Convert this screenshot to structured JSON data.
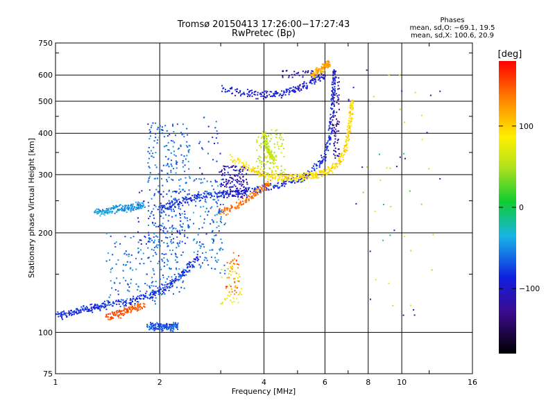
{
  "chart_data": {
    "type": "scatter",
    "title": "Tromsø 20150413 17:26:00−17:27:43",
    "subtitle": "RwPretec (Bp)",
    "xlabel": "Frequency [MHz]",
    "ylabel": "Stationary phase Virtual Height [km]",
    "x_scale": "log",
    "y_scale": "log",
    "xlim": [
      1,
      16
    ],
    "ylim": [
      75,
      750
    ],
    "x_ticks": [
      1,
      2,
      4,
      6,
      8,
      10,
      16
    ],
    "x_tick_labels": [
      "1",
      "2",
      "4",
      "6",
      "8",
      "10",
      "16"
    ],
    "y_ticks": [
      75,
      100,
      200,
      300,
      400,
      500,
      600,
      750
    ],
    "y_tick_labels": [
      "75",
      "100",
      "200",
      "300",
      "400",
      "500",
      "600",
      "750"
    ],
    "grid": true,
    "phase_stats": {
      "heading": "Phases",
      "o_line": "mean, sd,O: −69.1, 19.5",
      "x_line": "mean, sd,X: 100.6, 20.9"
    },
    "colorbar": {
      "label": "[deg]",
      "range": [
        -180,
        180
      ],
      "ticks": [
        100,
        0,
        -100
      ],
      "tick_labels": [
        "100",
        "0",
        "−100"
      ]
    },
    "traces": [
      {
        "mode": "O",
        "phase": -85,
        "points": [
          [
            1.0,
            112
          ],
          [
            1.1,
            114
          ],
          [
            1.2,
            117
          ],
          [
            1.3,
            119
          ],
          [
            1.4,
            121
          ],
          [
            1.6,
            124
          ],
          [
            1.8,
            128
          ],
          [
            2.0,
            133
          ],
          [
            2.2,
            142
          ],
          [
            2.4,
            155
          ],
          [
            2.6,
            172
          ]
        ]
      },
      {
        "mode": "O",
        "phase": -85,
        "points": [
          [
            2.0,
            235
          ],
          [
            2.2,
            245
          ],
          [
            2.4,
            252
          ],
          [
            2.6,
            258
          ],
          [
            3.0,
            262
          ],
          [
            3.5,
            268
          ],
          [
            4.0,
            272
          ],
          [
            4.5,
            280
          ],
          [
            5.0,
            290
          ],
          [
            5.5,
            305
          ],
          [
            6.0,
            340
          ],
          [
            6.2,
            390
          ],
          [
            6.3,
            460
          ],
          [
            6.35,
            540
          ],
          [
            6.4,
            620
          ]
        ]
      },
      {
        "mode": "X",
        "phase": 95,
        "points": [
          [
            3.2,
            340
          ],
          [
            3.6,
            315
          ],
          [
            4.0,
            300
          ],
          [
            4.4,
            295
          ],
          [
            4.8,
            294
          ],
          [
            5.2,
            296
          ],
          [
            5.6,
            300
          ],
          [
            6.0,
            305
          ],
          [
            6.4,
            315
          ],
          [
            6.8,
            345
          ],
          [
            7.0,
            390
          ],
          [
            7.1,
            440
          ],
          [
            7.2,
            500
          ]
        ]
      },
      {
        "mode": "X",
        "phase": 140,
        "points": [
          [
            3.0,
            230
          ],
          [
            3.3,
            240
          ],
          [
            3.6,
            255
          ],
          [
            3.9,
            270
          ],
          [
            4.2,
            285
          ]
        ]
      },
      {
        "mode": "O",
        "phase": -95,
        "points": [
          [
            3.0,
            545
          ],
          [
            3.5,
            528
          ],
          [
            4.0,
            522
          ],
          [
            4.5,
            528
          ],
          [
            5.0,
            545
          ],
          [
            5.5,
            570
          ],
          [
            6.0,
            600
          ]
        ]
      },
      {
        "mode": "X",
        "phase": 120,
        "points": [
          [
            5.5,
            600
          ],
          [
            5.8,
            620
          ],
          [
            6.0,
            640
          ],
          [
            6.2,
            650
          ]
        ]
      },
      {
        "mode": "X",
        "phase": 60,
        "points": [
          [
            4.0,
            400
          ],
          [
            4.1,
            360
          ],
          [
            4.2,
            340
          ],
          [
            4.3,
            330
          ]
        ]
      },
      {
        "mode": "X",
        "phase": 150,
        "points": [
          [
            1.4,
            111
          ],
          [
            1.5,
            113
          ],
          [
            1.6,
            116
          ],
          [
            1.7,
            119
          ],
          [
            1.8,
            121
          ]
        ]
      },
      {
        "mode": "O",
        "phase": -45,
        "points": [
          [
            1.3,
            231
          ],
          [
            1.4,
            233
          ],
          [
            1.5,
            236
          ],
          [
            1.6,
            238
          ],
          [
            1.7,
            240
          ],
          [
            1.8,
            242
          ]
        ]
      },
      {
        "mode": "O",
        "phase": -70,
        "points": [
          [
            1.85,
            104
          ],
          [
            1.95,
            104
          ],
          [
            2.05,
            104
          ],
          [
            2.15,
            104
          ],
          [
            2.25,
            104
          ]
        ]
      }
    ],
    "clusters": [
      {
        "phase": -60,
        "f_range": [
          1.85,
          2.45
        ],
        "h_range": [
          130,
          430
        ],
        "count": 380
      },
      {
        "phase": -55,
        "f_range": [
          2.5,
          3.1
        ],
        "h_range": [
          150,
          300
        ],
        "count": 120
      },
      {
        "phase": -110,
        "f_range": [
          3.0,
          3.6
        ],
        "h_range": [
          255,
          320
        ],
        "count": 160
      },
      {
        "phase": 55,
        "f_range": [
          3.8,
          4.6
        ],
        "h_range": [
          300,
          410
        ],
        "count": 110
      },
      {
        "phase": 145,
        "f_range": [
          3.1,
          3.4
        ],
        "h_range": [
          130,
          175
        ],
        "count": 40
      },
      {
        "phase": 75,
        "f_range": [
          3.0,
          3.45
        ],
        "h_range": [
          118,
          160
        ],
        "count": 40
      },
      {
        "phase": -60,
        "f_range": [
          1.4,
          1.95
        ],
        "h_range": [
          120,
          200
        ],
        "count": 110
      },
      {
        "phase": -90,
        "f_range": [
          1.7,
          2.3
        ],
        "h_range": [
          185,
          270
        ],
        "count": 60
      },
      {
        "phase": -120,
        "f_range": [
          6.3,
          6.6
        ],
        "h_range": [
          330,
          620
        ],
        "count": 80
      },
      {
        "phase": -115,
        "f_range": [
          4.5,
          5.6
        ],
        "h_range": [
          590,
          620
        ],
        "count": 30
      },
      {
        "phase": 60,
        "f_range": [
          7.0,
          13
        ],
        "h_range": [
          110,
          650
        ],
        "count": 25
      },
      {
        "phase": -110,
        "f_range": [
          7.0,
          13
        ],
        "h_range": [
          110,
          650
        ],
        "count": 20
      },
      {
        "phase": 5,
        "f_range": [
          8.5,
          11.5
        ],
        "h_range": [
          160,
          400
        ],
        "count": 6
      },
      {
        "phase": -75,
        "f_range": [
          2.6,
          3.0
        ],
        "h_range": [
          180,
          450
        ],
        "count": 50
      }
    ]
  }
}
